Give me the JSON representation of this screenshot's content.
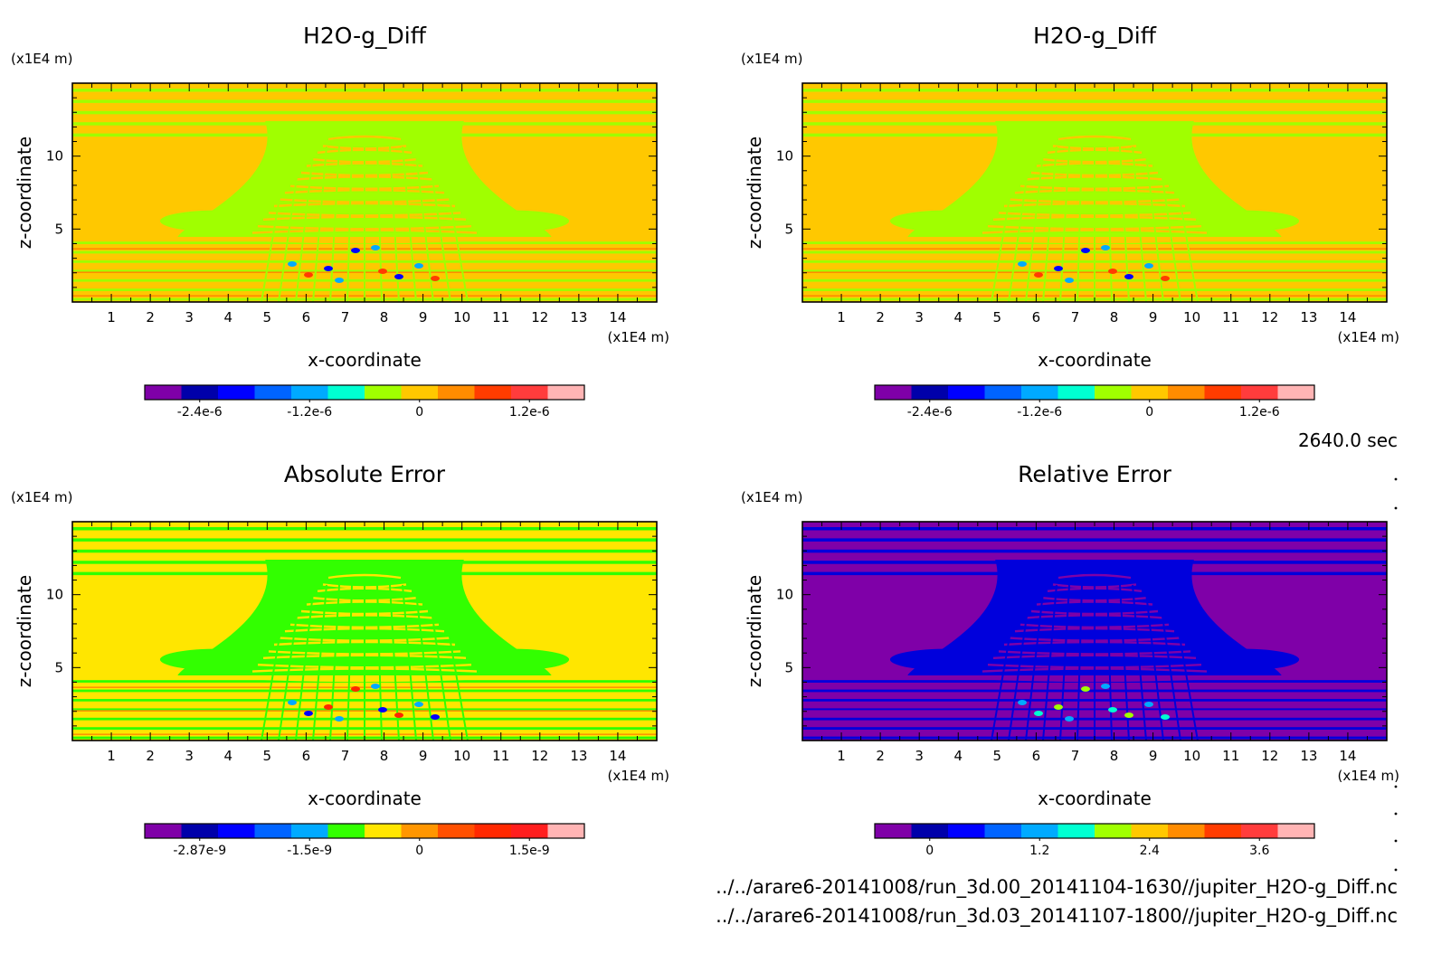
{
  "time_label": "2640.0 sec",
  "file_paths": [
    "../../arare6-20141008/run_3d.00_20141104-1630//jupiter_H2O-g_Diff.nc",
    "../../arare6-20141008/run_3d.03_20141107-1800//jupiter_H2O-g_Diff.nc"
  ],
  "chart_data": [
    {
      "type": "heatmap",
      "title": "H2O-g_Diff",
      "xlabel": "x-coordinate",
      "ylabel": "z-coordinate",
      "x_unit": "(x1E4 m)",
      "y_unit": "(x1E4 m)",
      "xlim": [
        0,
        15
      ],
      "ylim": [
        0,
        15
      ],
      "x_ticks": [
        "1",
        "2",
        "3",
        "4",
        "5",
        "6",
        "7",
        "8",
        "9",
        "10",
        "11",
        "12",
        "13",
        "14"
      ],
      "y_ticks": [
        "5",
        "10"
      ],
      "colorbar_colors": [
        "#7f00a8",
        "#0000aa",
        "#0000ff",
        "#0064ff",
        "#00aaff",
        "#00ffd2",
        "#a0ff00",
        "#ffc800",
        "#ff8c00",
        "#ff3c00",
        "#ff3c3c",
        "#ffb4b4"
      ],
      "colorbar_labels": [
        "-2.4e-6",
        "-1.2e-6",
        "0",
        "1.2e-6"
      ],
      "dominant_colors": [
        "#ffc800",
        "#a0ff00",
        "#ff8c00",
        "#00aaff",
        "#ff3c00",
        "#0000ff"
      ]
    },
    {
      "type": "heatmap",
      "title": "H2O-g_Diff",
      "xlabel": "x-coordinate",
      "ylabel": "z-coordinate",
      "x_unit": "(x1E4 m)",
      "y_unit": "(x1E4 m)",
      "xlim": [
        0,
        15
      ],
      "ylim": [
        0,
        15
      ],
      "x_ticks": [
        "1",
        "2",
        "3",
        "4",
        "5",
        "6",
        "7",
        "8",
        "9",
        "10",
        "11",
        "12",
        "13",
        "14"
      ],
      "y_ticks": [
        "5",
        "10"
      ],
      "colorbar_colors": [
        "#7f00a8",
        "#0000aa",
        "#0000ff",
        "#0064ff",
        "#00aaff",
        "#00ffd2",
        "#a0ff00",
        "#ffc800",
        "#ff8c00",
        "#ff3c00",
        "#ff3c3c",
        "#ffb4b4"
      ],
      "colorbar_labels": [
        "-2.4e-6",
        "-1.2e-6",
        "0",
        "1.2e-6"
      ],
      "dominant_colors": [
        "#ffc800",
        "#a0ff00",
        "#ff8c00",
        "#00aaff",
        "#ff3c00",
        "#0000ff"
      ]
    },
    {
      "type": "heatmap",
      "title": "Absolute Error",
      "xlabel": "x-coordinate",
      "ylabel": "z-coordinate",
      "x_unit": "(x1E4 m)",
      "y_unit": "(x1E4 m)",
      "xlim": [
        0,
        15
      ],
      "ylim": [
        0,
        15
      ],
      "x_ticks": [
        "1",
        "2",
        "3",
        "4",
        "5",
        "6",
        "7",
        "8",
        "9",
        "10",
        "11",
        "12",
        "13",
        "14"
      ],
      "y_ticks": [
        "5",
        "10"
      ],
      "colorbar_colors": [
        "#7f00a8",
        "#0000aa",
        "#0000ff",
        "#0064ff",
        "#00aaff",
        "#32ff00",
        "#ffe600",
        "#ff9600",
        "#ff5000",
        "#ff2800",
        "#ff1e1e",
        "#ffb4b4"
      ],
      "colorbar_labels": [
        "-2.87e-9",
        "-1.5e-9",
        "0",
        "1.5e-9"
      ],
      "dominant_colors": [
        "#ffe600",
        "#32ff00",
        "#ff9600",
        "#00aaff",
        "#0000ff",
        "#ff2800"
      ]
    },
    {
      "type": "heatmap",
      "title": "Relative Error",
      "xlabel": "x-coordinate",
      "ylabel": "z-coordinate",
      "x_unit": "(x1E4 m)",
      "y_unit": "(x1E4 m)",
      "xlim": [
        0,
        15
      ],
      "ylim": [
        0,
        15
      ],
      "x_ticks": [
        "1",
        "2",
        "3",
        "4",
        "5",
        "6",
        "7",
        "8",
        "9",
        "10",
        "11",
        "12",
        "13",
        "14"
      ],
      "y_ticks": [
        "5",
        "10"
      ],
      "colorbar_colors": [
        "#7f00a8",
        "#0000aa",
        "#0000ff",
        "#0064ff",
        "#00aaff",
        "#00ffd2",
        "#a0ff00",
        "#ffc800",
        "#ff8c00",
        "#ff3c00",
        "#ff3c3c",
        "#ffb4b4"
      ],
      "colorbar_labels": [
        "0",
        "1.2",
        "2.4",
        "3.6"
      ],
      "dominant_colors": [
        "#7f00a8",
        "#0000dc",
        "#7f00a8",
        "#00aaff",
        "#00ffd2",
        "#a0ff00"
      ]
    }
  ]
}
